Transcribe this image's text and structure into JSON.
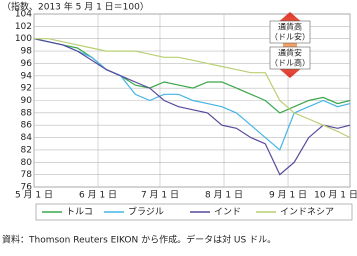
{
  "chart_data": {
    "type": "line",
    "title": "（指数、2013 年 5 月 1 日＝100）",
    "x": [
      0,
      7,
      14,
      21,
      28,
      35,
      42,
      49,
      56,
      63,
      70,
      77,
      84,
      91,
      98,
      105,
      112,
      119,
      126,
      133,
      140,
      147,
      153
    ],
    "xlim": [
      0,
      153
    ],
    "xticks": [
      {
        "value": 0,
        "label": "5 月 1 日"
      },
      {
        "value": 31,
        "label": "6 月 1 日"
      },
      {
        "value": 61,
        "label": "7 月 1 日"
      },
      {
        "value": 92,
        "label": "8 月 1 日"
      },
      {
        "value": 123,
        "label": "9 月 1 日"
      },
      {
        "value": 153,
        "label": "10 月 1 日"
      }
    ],
    "ylim": [
      76,
      104
    ],
    "yticks": [
      76,
      78,
      80,
      82,
      84,
      86,
      88,
      90,
      92,
      94,
      96,
      98,
      100,
      102,
      104
    ],
    "grid": true,
    "series": [
      {
        "name": "トルコ",
        "color": "#3aa64a",
        "values": [
          100,
          99.5,
          99,
          98.5,
          97,
          95,
          94,
          92.5,
          92,
          93,
          92.5,
          92,
          93,
          93,
          92,
          91,
          90,
          88,
          89,
          90,
          90.5,
          89.5,
          90
        ]
      },
      {
        "name": "ブラジル",
        "color": "#45b4e6",
        "values": [
          100,
          99.5,
          99,
          98,
          97,
          95,
          94,
          91,
          90,
          91,
          91,
          90,
          89.5,
          89,
          88,
          86,
          84,
          82,
          88,
          89,
          90,
          89,
          89.5
        ]
      },
      {
        "name": "インド",
        "color": "#574a9c",
        "values": [
          100,
          99.5,
          99,
          98,
          96.5,
          95,
          94,
          93,
          92,
          90,
          89,
          88.5,
          88,
          86,
          85.5,
          84,
          83,
          78,
          80,
          84,
          86,
          85.5,
          86
        ]
      },
      {
        "name": "インドネシア",
        "color": "#b9cf72",
        "values": [
          100,
          100,
          99.5,
          99,
          98.5,
          98,
          98,
          98,
          97.5,
          97,
          97,
          96.5,
          96,
          95.5,
          95,
          94.5,
          94.5,
          90,
          88,
          87,
          86,
          85,
          84
        ]
      }
    ],
    "annotation_up": [
      "通貨高",
      "（ドル安）"
    ],
    "annotation_down": [
      "通貨安",
      "（ドル高）"
    ],
    "source": "資料：Thomson Reuters EIKON から作成。データは対 US ドル。"
  }
}
